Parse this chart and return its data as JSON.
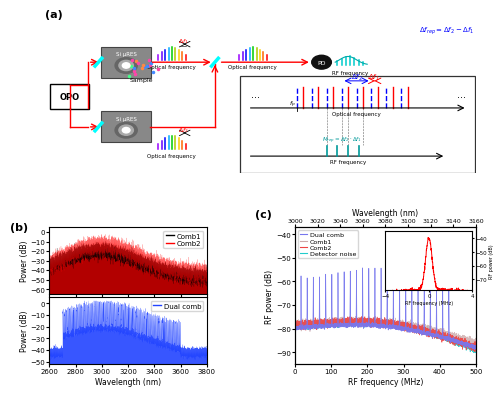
{
  "panel_b": {
    "wavelength_range": [
      2600,
      3800
    ],
    "upper_ylim": [
      -65,
      5
    ],
    "lower_ylim": [
      -52,
      5
    ],
    "ylabel": "Power (dB)",
    "xlabel": "Wavelength (nm)",
    "comb1_color": "#000000",
    "comb2_color": "#ff2222",
    "dualcomb_color": "#2244ff"
  },
  "panel_c": {
    "ylim": [
      -95,
      -37
    ],
    "xlabel": "RF frequency (MHz)",
    "ylabel": "RF power (dB)",
    "wl_top_label": "Wavelength (nm)",
    "wl_ticks_pos": [
      0,
      62.5,
      125,
      187.5,
      250,
      312.5,
      375,
      437.5,
      500
    ],
    "wl_ticks_labels": [
      "3000",
      "3020",
      "3040",
      "3060",
      "3080",
      "3100",
      "3120",
      "3140",
      "3160"
    ],
    "dual_comb_color": "#7777ee",
    "comb1_color": "#ccaaaa",
    "comb2_color": "#ee4444",
    "noise_color": "#22cccc"
  },
  "panel_a_label": "(a)",
  "panel_b_label": "(b)",
  "panel_c_label": "(c)",
  "fig_bg": "#ffffff"
}
